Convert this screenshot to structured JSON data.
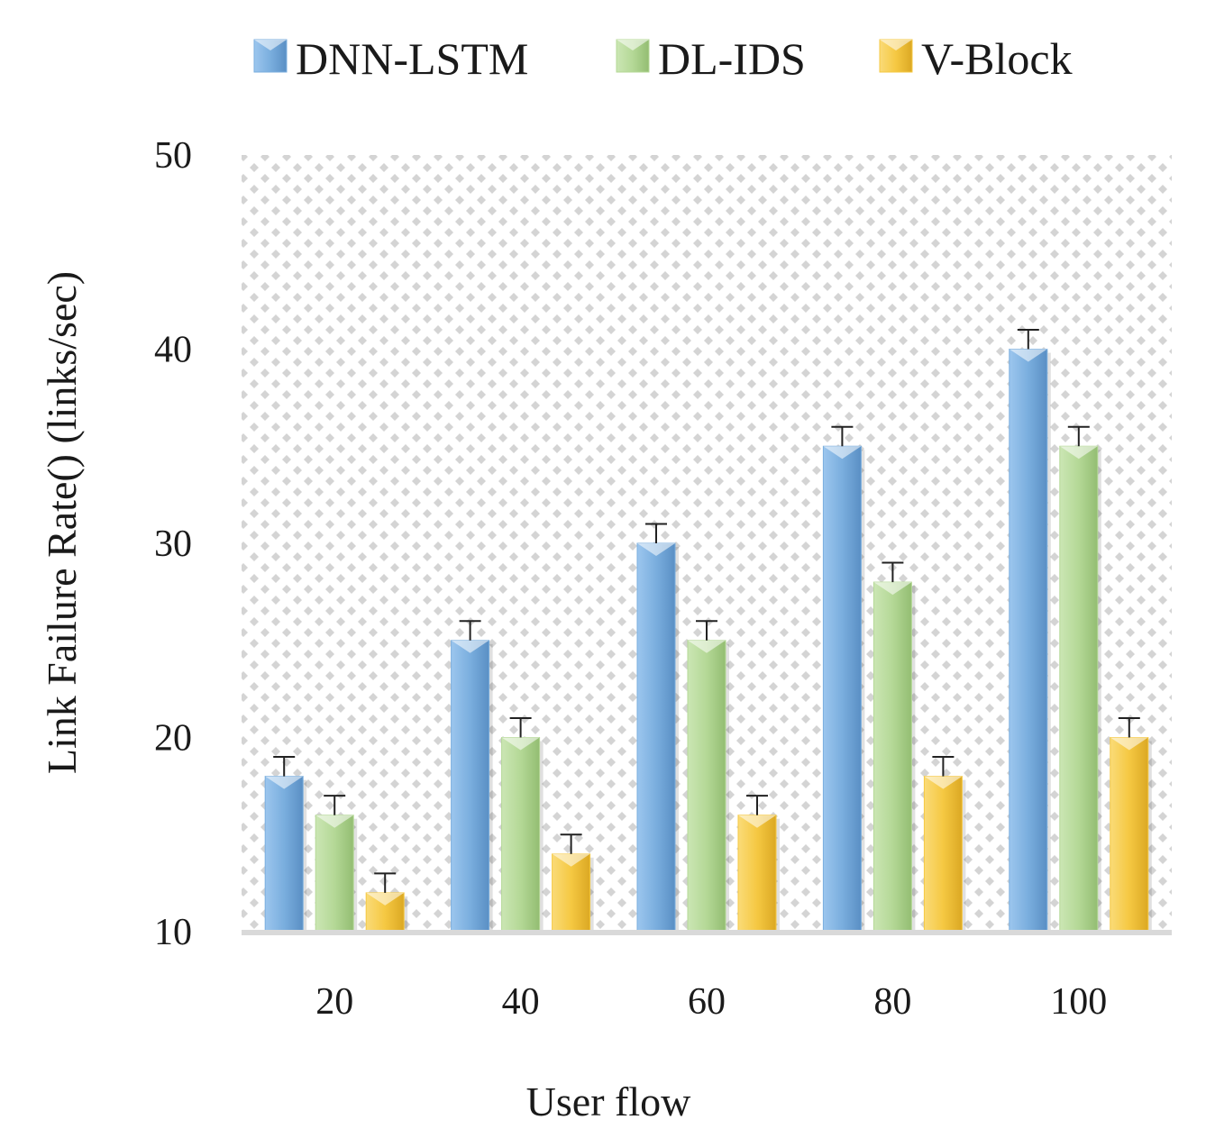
{
  "chart_data": {
    "type": "bar",
    "title": "",
    "xlabel": "User flow",
    "ylabel": "Link Failure Rate() (links/sec)",
    "ylim": [
      10,
      50
    ],
    "yticks": [
      "10",
      "20",
      "30",
      "40",
      "50"
    ],
    "categories": [
      "20",
      "40",
      "60",
      "80",
      "100"
    ],
    "series": [
      {
        "name": "DNN-LSTM",
        "color": "#7aaede",
        "values": [
          18,
          25,
          30,
          35,
          40
        ],
        "error": [
          1,
          1,
          1,
          1,
          1
        ]
      },
      {
        "name": "DL-IDS",
        "color": "#b4d896",
        "values": [
          16,
          20,
          25,
          28,
          35
        ],
        "error": [
          1,
          1,
          1,
          1,
          1
        ]
      },
      {
        "name": "V-Block",
        "color": "#f5c842",
        "values": [
          12,
          14,
          16,
          18,
          20
        ],
        "error": [
          1,
          1,
          1,
          1,
          1
        ]
      }
    ],
    "legend_position": "top",
    "grid": false,
    "background": "dotted"
  }
}
